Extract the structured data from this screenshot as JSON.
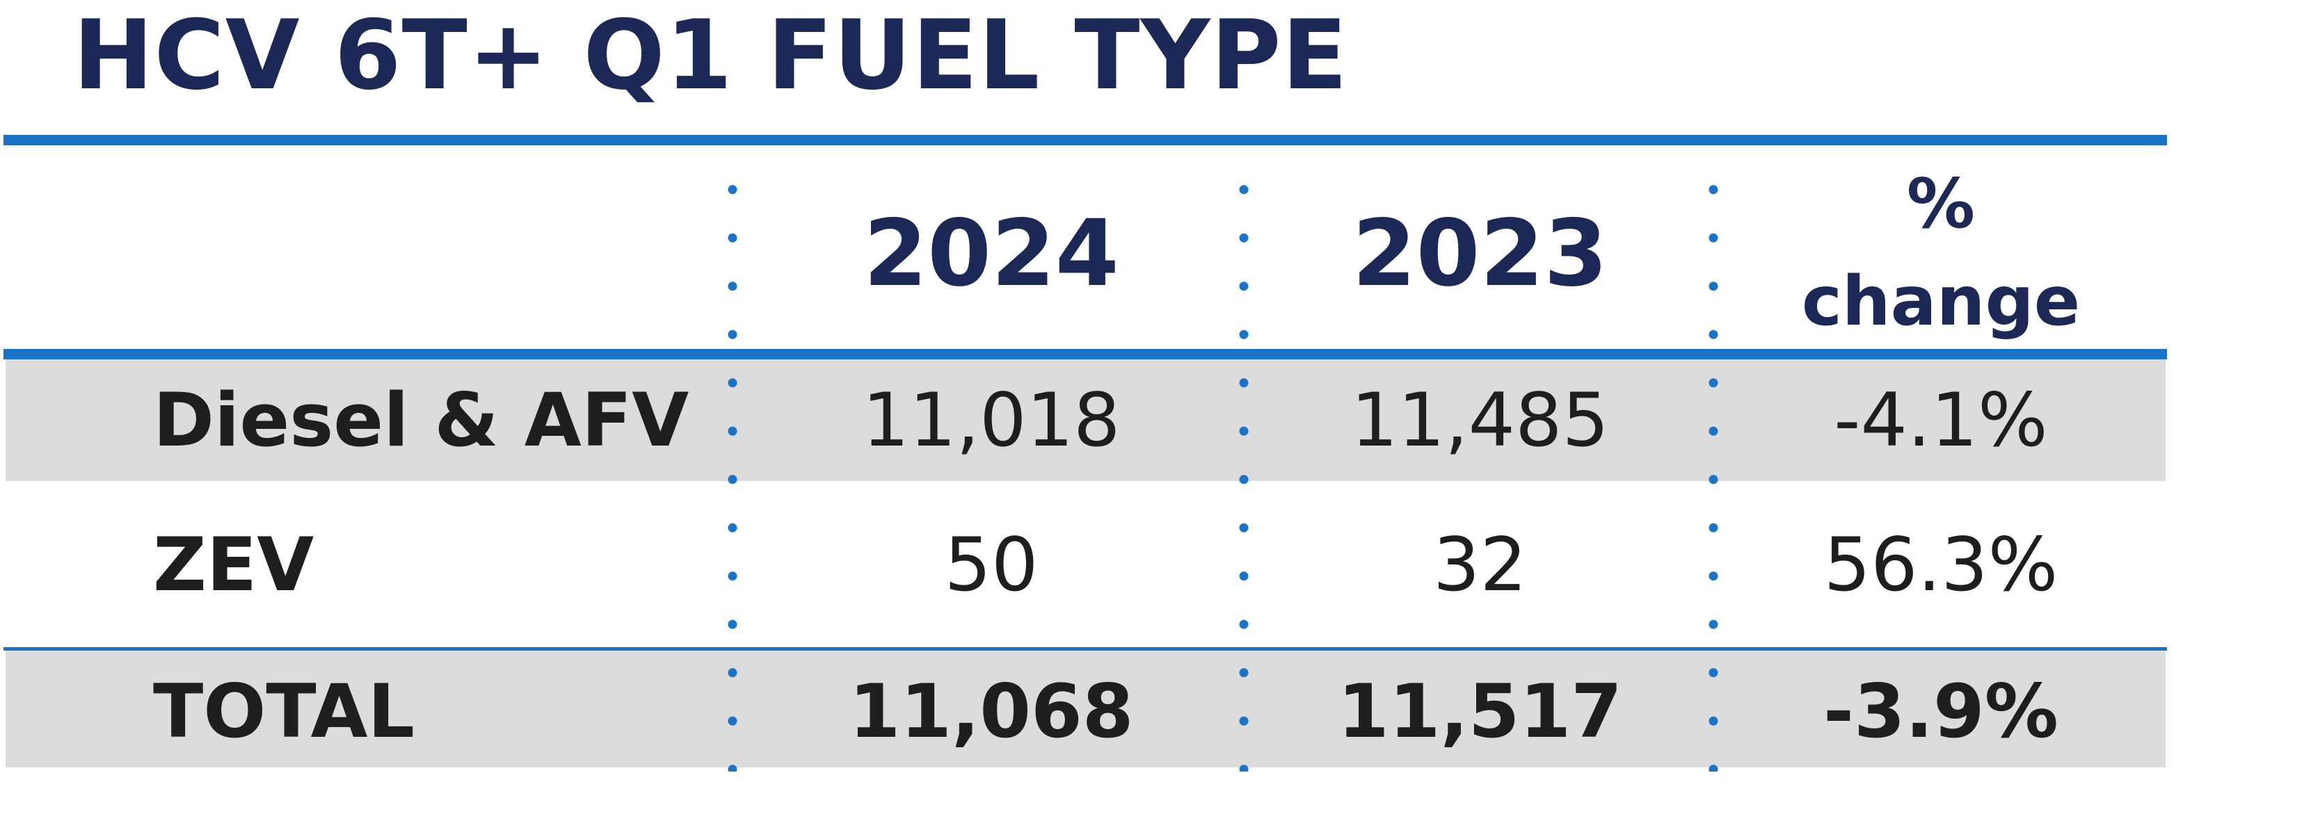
{
  "chart_data": {
    "type": "table",
    "title": "HCV 6T+ Q1 FUEL TYPE",
    "columns": [
      "",
      "2024",
      "2023",
      "%",
      "change"
    ],
    "rows": [
      {
        "label": "Diesel & AFV",
        "y2024": "11,018",
        "y2023": "11,485",
        "change": "-4.1%"
      },
      {
        "label": "ZEV",
        "y2024": "50",
        "y2023": "32",
        "change": "56.3%"
      },
      {
        "label": "TOTAL",
        "y2024": "11,068",
        "y2023": "11,517",
        "change": "-3.9%"
      }
    ],
    "colors": {
      "title": "#1c2856",
      "accent": "#1b73c8",
      "band": "#dcdcdc"
    }
  }
}
